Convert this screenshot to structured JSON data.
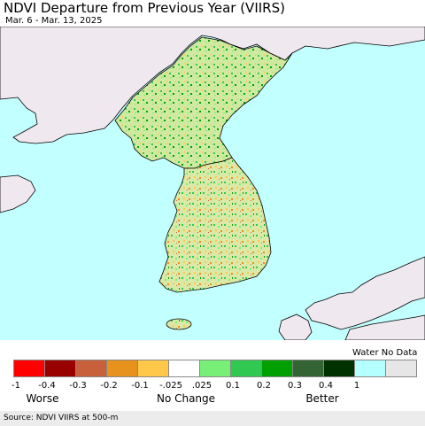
{
  "header": {
    "title": "NDVI Departure from Previous Year (VIIRS)",
    "date_range": "Mar. 6 - Mar. 13, 2025"
  },
  "map": {
    "water_color": "#c2ffff",
    "land_outside_color": "#f0e8ef",
    "border_color": "#000000"
  },
  "legend": {
    "colors": [
      "#ff0000",
      "#990000",
      "#c8603c",
      "#e8921e",
      "#ffc84a",
      "#ffffff",
      "#78f078",
      "#30c850",
      "#00a000",
      "#346434",
      "#003200",
      "#b4ffff",
      "#e6e6e6"
    ],
    "ticks": [
      "-1",
      "-0.4",
      "-0.3",
      "-0.2",
      "-0.1",
      "-.025",
      ".025",
      "0.1",
      "0.2",
      "0.3",
      "0.4",
      "1"
    ],
    "water_nodata_label": "Water No Data",
    "worse_label": "Worse",
    "nochange_label": "No Change",
    "better_label": "Better"
  },
  "footer": {
    "source": "Source: NDVI VIIRS at 500-m"
  }
}
